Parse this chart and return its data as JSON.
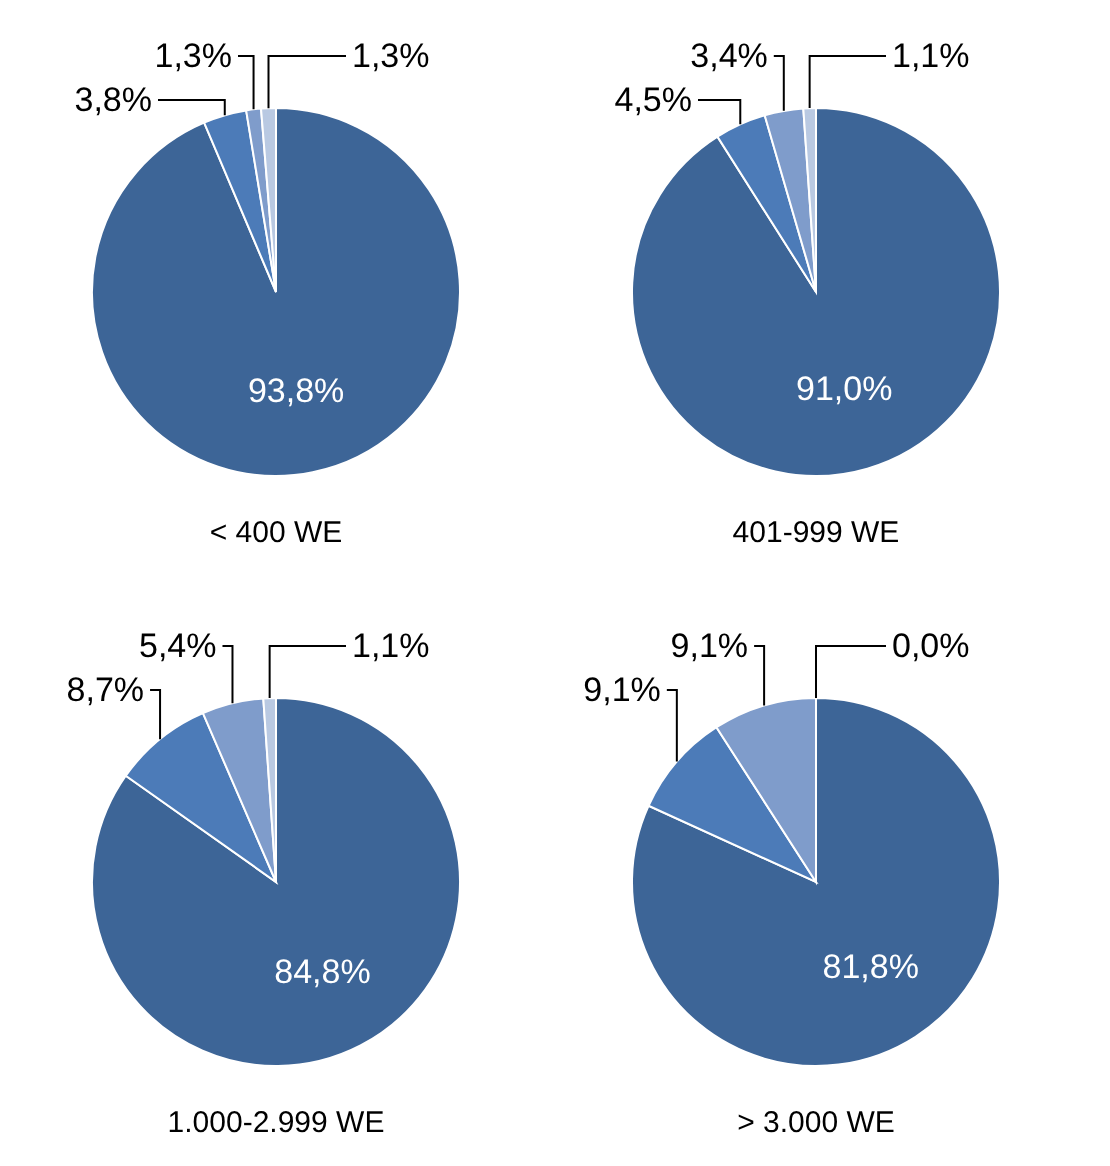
{
  "chart_data": [
    {
      "type": "pie",
      "title": "< 400 WE",
      "categories": [
        null,
        null,
        null,
        null
      ],
      "values": [
        93.8,
        3.8,
        1.3,
        1.3
      ],
      "colors": [
        "#3d6597",
        "#4c7bb8",
        "#7f9ccb",
        "#b9c9e2"
      ],
      "value_labels": [
        "93,8%",
        "3,8%",
        "1,3%",
        "1,3%"
      ],
      "legend": false
    },
    {
      "type": "pie",
      "title": "401-999 WE",
      "categories": [
        null,
        null,
        null,
        null
      ],
      "values": [
        91.0,
        4.5,
        3.4,
        1.1
      ],
      "colors": [
        "#3d6597",
        "#4c7bb8",
        "#7f9ccb",
        "#b9c9e2"
      ],
      "value_labels": [
        "91,0%",
        "4,5%",
        "3,4%",
        "1,1%"
      ],
      "legend": false
    },
    {
      "type": "pie",
      "title": "1.000-2.999 WE",
      "categories": [
        null,
        null,
        null,
        null
      ],
      "values": [
        84.8,
        8.7,
        5.4,
        1.1
      ],
      "colors": [
        "#3d6597",
        "#4c7bb8",
        "#7f9ccb",
        "#b9c9e2"
      ],
      "value_labels": [
        "84,8%",
        "8,7%",
        "5,4%",
        "1,1%"
      ],
      "legend": false
    },
    {
      "type": "pie",
      "title": "> 3.000 WE",
      "categories": [
        null,
        null,
        null,
        null
      ],
      "values": [
        81.8,
        9.1,
        9.1,
        0.0
      ],
      "colors": [
        "#3d6597",
        "#4c7bb8",
        "#7f9ccb",
        "#b9c9e2"
      ],
      "value_labels": [
        "81,8%",
        "9,1%",
        "9,1%",
        "0,0%"
      ],
      "legend": false
    }
  ]
}
